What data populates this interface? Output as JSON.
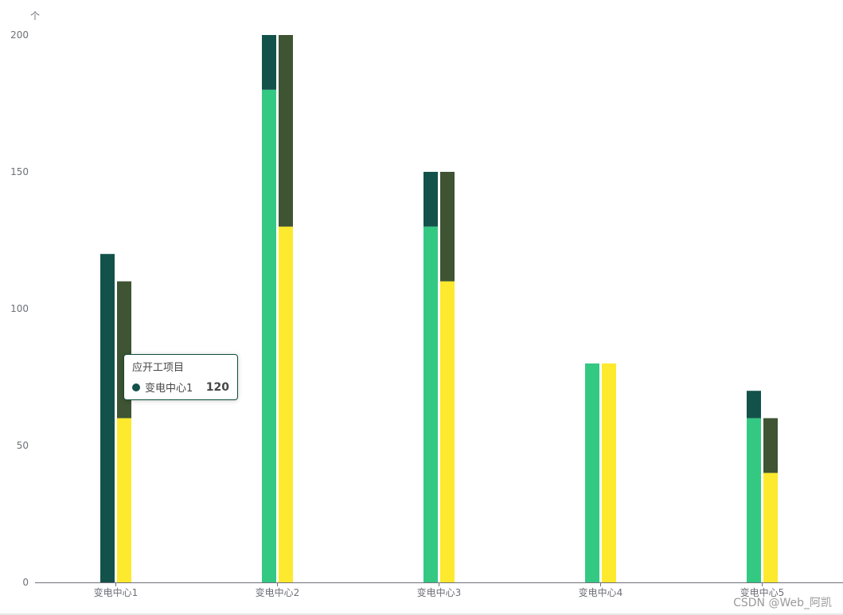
{
  "chart_data": {
    "type": "bar",
    "y_unit": "个",
    "ylim": [
      0,
      200
    ],
    "y_ticks": [
      0,
      50,
      100,
      150,
      200
    ],
    "categories": [
      "变电中心1",
      "变电中心2",
      "变电中心3",
      "变电中心4",
      "变电中心5"
    ],
    "stacks": [
      {
        "segments": [
          {
            "values": [
              0,
              180,
              130,
              80,
              60
            ],
            "color": "#33c983"
          },
          {
            "values": [
              120,
              20,
              20,
              0,
              10
            ],
            "color": "#13524a"
          }
        ]
      },
      {
        "segments": [
          {
            "values": [
              60,
              130,
              110,
              80,
              40
            ],
            "color": "#fde92d"
          },
          {
            "values": [
              50,
              70,
              40,
              0,
              20
            ],
            "color": "#3e5433"
          }
        ]
      }
    ],
    "grid": false
  },
  "tooltip": {
    "title": "应开工项目",
    "name": "变电中心1",
    "value": "120",
    "marker_color": "#13524a"
  },
  "watermark": "CSDN @Web_阿凯"
}
